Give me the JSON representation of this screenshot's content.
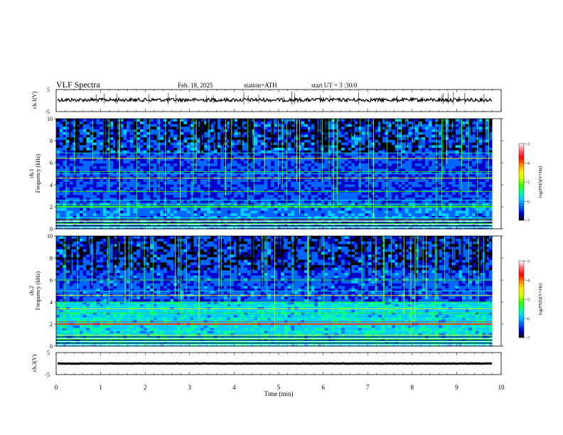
{
  "header": {
    "title": "VLF  Spectra",
    "date": "Feb. 18, 2025",
    "station": "station=ATH",
    "start_ut": "start  UT  =   3  :30:0"
  },
  "panels": {
    "ch1_wave": {
      "ylabel": "ch.1(V)",
      "yticks": [
        "5",
        "-5"
      ]
    },
    "ch1_spec": {
      "ylabel_top": "ch.1",
      "ylabel": "Frequency  (kHz)",
      "yticks": [
        "0",
        "2",
        "4",
        "6",
        "8",
        "10"
      ]
    },
    "ch2_spec": {
      "ylabel_top": "ch.2",
      "ylabel": "Frequency  (kHz)",
      "yticks": [
        "0",
        "2",
        "4",
        "6",
        "8",
        "10"
      ]
    },
    "ch3_wave": {
      "ylabel": "ch.3(V)",
      "yticks": [
        "5",
        "-5"
      ]
    }
  },
  "colorbar": {
    "label": "log(PSD)(V²/Hz)",
    "ticks": [
      "-3",
      "-4",
      "-5",
      "-6",
      "-7"
    ],
    "colors": [
      "#000000",
      "#0000cc",
      "#0066ff",
      "#00ccff",
      "#00ff99",
      "#33ff00",
      "#ccff00",
      "#ffee00",
      "#ff8800",
      "#ff0000",
      "#ff6677",
      "#ffffff"
    ]
  },
  "xaxis": {
    "label": "Time  (min)",
    "ticks": [
      "0",
      "1",
      "2",
      "3",
      "4",
      "5",
      "6",
      "7",
      "8",
      "9",
      "10"
    ]
  },
  "chart_data": {
    "type": "heatmap",
    "title": "VLF  Spectra",
    "xlabel": "Time  (min)",
    "xlim": [
      0,
      10
    ],
    "data_end_min": 9.8,
    "panels": [
      {
        "name": "ch.1(V)",
        "type": "line",
        "ylim": [
          -5,
          5
        ],
        "baseline_v": 0.3
      },
      {
        "name": "ch.1",
        "type": "heatmap",
        "ylabel": "Frequency  (kHz)",
        "ylim": [
          0,
          10
        ],
        "zlim": [
          -7,
          -3
        ],
        "narrowband_lines_khz": [
          0.2,
          0.5,
          0.8,
          1.0,
          2.0,
          2.2,
          2.6,
          3.4,
          4.6,
          5.0,
          5.2,
          6.4,
          6.9
        ]
      },
      {
        "name": "ch.2",
        "type": "heatmap",
        "ylabel": "Frequency  (kHz)",
        "ylim": [
          0,
          10
        ],
        "zlim": [
          -7,
          -3
        ],
        "narrowband_lines_khz": [
          0.3,
          0.6,
          1.0,
          1.4,
          2.0,
          2.2,
          2.5,
          3.0,
          3.4,
          3.6,
          4.0,
          4.6,
          5.0,
          6.0
        ]
      },
      {
        "name": "ch.3(V)",
        "type": "line",
        "ylim": [
          -5,
          5
        ],
        "baseline_v": 0.0
      }
    ]
  }
}
